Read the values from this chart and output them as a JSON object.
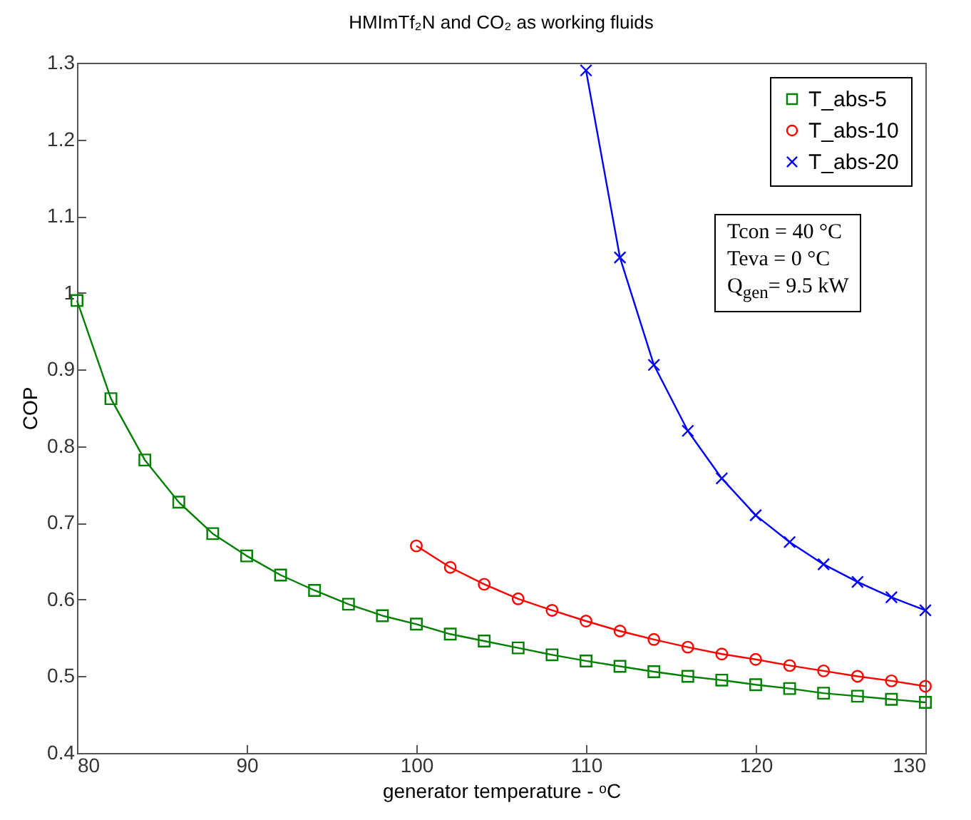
{
  "chart_data": {
    "type": "line",
    "title": "HMImTf₂N and CO₂ as working fluids",
    "xlabel": "generator temperature - ᵒC",
    "ylabel": "COP",
    "xlim": [
      80,
      130
    ],
    "xticks": [
      80,
      90,
      100,
      110,
      120,
      130
    ],
    "ylim": [
      0.4,
      1.3
    ],
    "yticks": [
      0.4,
      0.5,
      0.6,
      0.7,
      0.8,
      0.9,
      1,
      1.1,
      1.2,
      1.3
    ],
    "grid": false,
    "legend": "top right",
    "line_style": "solid",
    "annotations": [
      "Tcon = 40 °C",
      "Teva = 0 °C",
      "Q$_{gen}$= 9.5 kW"
    ],
    "series": [
      {
        "name": "T_abs-5",
        "color": "#008000",
        "marker": "square",
        "x": [
          80,
          82,
          84,
          86,
          88,
          90,
          92,
          94,
          96,
          98,
          100,
          102,
          104,
          106,
          108,
          110,
          112,
          114,
          116,
          118,
          120,
          122,
          124,
          126,
          128,
          130
        ],
        "values": [
          0.99,
          0.862,
          0.782,
          0.727,
          0.686,
          0.657,
          0.632,
          0.612,
          0.594,
          0.579,
          0.568,
          0.555,
          0.546,
          0.537,
          0.528,
          0.52,
          0.513,
          0.506,
          0.5,
          0.495,
          0.489,
          0.484,
          0.478,
          0.474,
          0.47,
          0.466
        ]
      },
      {
        "name": "T_abs-10",
        "color": "#ff0000",
        "marker": "circle",
        "x": [
          100,
          102,
          104,
          106,
          108,
          110,
          112,
          114,
          116,
          118,
          120,
          122,
          124,
          126,
          128,
          130
        ],
        "values": [
          0.67,
          0.642,
          0.62,
          0.601,
          0.586,
          0.572,
          0.559,
          0.548,
          0.538,
          0.529,
          0.522,
          0.514,
          0.507,
          0.5,
          0.494,
          0.487
        ]
      },
      {
        "name": "T_abs-20",
        "color": "#0000ff",
        "marker": "cross",
        "x": [
          110,
          112,
          114,
          116,
          118,
          120,
          122,
          124,
          126,
          128,
          130
        ],
        "values": [
          1.29,
          1.046,
          0.906,
          0.82,
          0.758,
          0.71,
          0.675,
          0.646,
          0.623,
          0.603,
          0.586
        ]
      }
    ]
  }
}
